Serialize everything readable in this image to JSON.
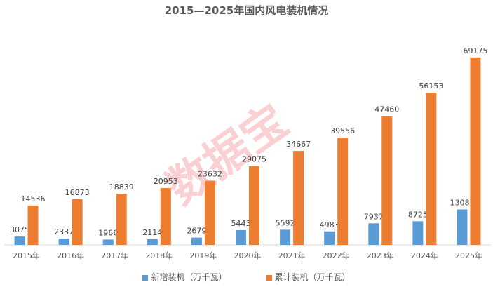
{
  "chart_data": {
    "type": "bar",
    "title": "2015—2025年国内风电装机情况",
    "categories": [
      "2015年",
      "2016年",
      "2017年",
      "2018年",
      "2019年",
      "2020年",
      "2021年",
      "2022年",
      "2023年",
      "2024年",
      "2025年"
    ],
    "series": [
      {
        "name": "新增装机（万千瓦）",
        "color": "#5b9bd5",
        "values": [
          3075,
          2337,
          1966,
          2114,
          2679,
          5443,
          5592,
          4983,
          7937,
          8725,
          13082
        ]
      },
      {
        "name": "累计装机（万千瓦）",
        "color": "#ed7d31",
        "values": [
          14536,
          16873,
          18839,
          20953,
          23632,
          29075,
          34667,
          39556,
          47460,
          56153,
          69175
        ]
      }
    ],
    "ylim": [
      0,
      80000
    ],
    "grid": false,
    "legend": "bottom",
    "data_labels": true
  },
  "watermark": "数据宝"
}
